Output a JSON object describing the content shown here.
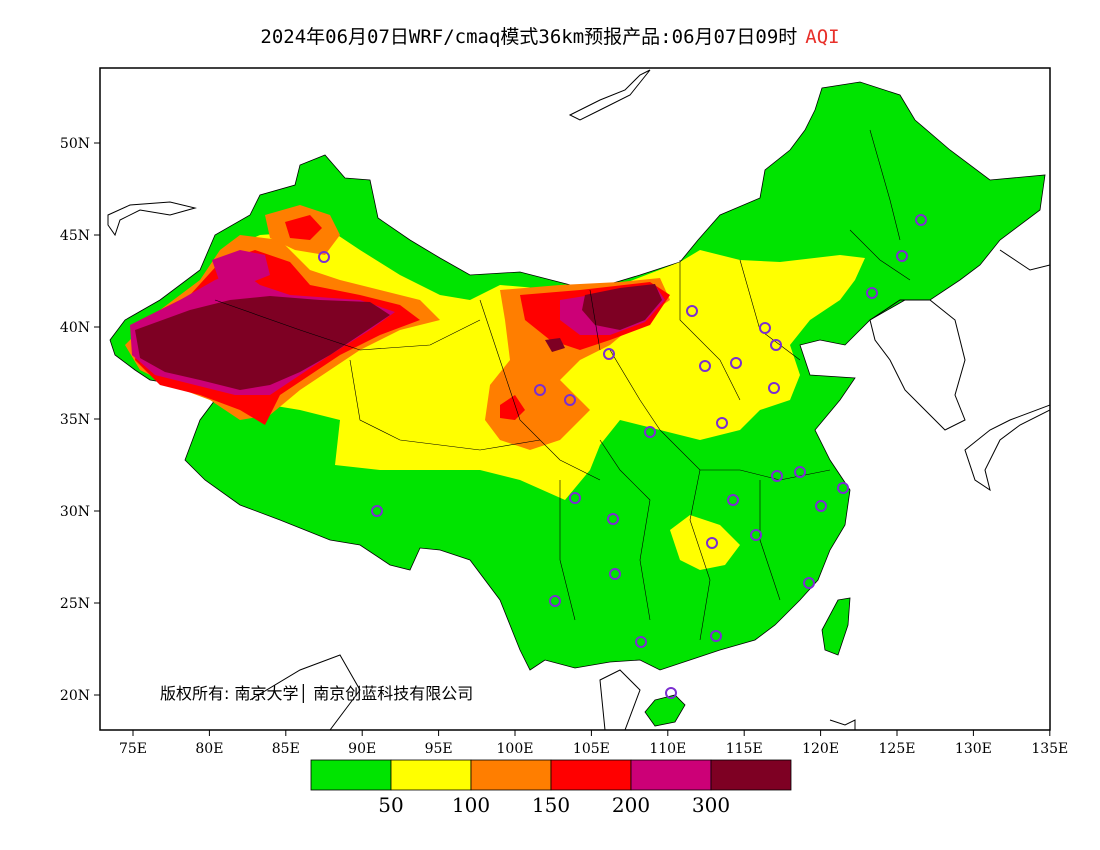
{
  "title": {
    "main": "2024年06月07日WRF/cmaq模式36km预报产品:06月07日09时",
    "variable": "AQI"
  },
  "copyright": "版权所有: 南京大学│ 南京创蓝科技有限公司",
  "axes": {
    "lon_ticks": [
      "75E",
      "80E",
      "85E",
      "90E",
      "95E",
      "100E",
      "105E",
      "110E",
      "115E",
      "120E",
      "125E",
      "130E",
      "135E"
    ],
    "lat_ticks": [
      "20N",
      "25N",
      "30N",
      "35N",
      "40N",
      "45N",
      "50N"
    ]
  },
  "colorbar": {
    "colors": [
      "#00e400",
      "#ffff00",
      "#ff7e00",
      "#ff0000",
      "#cc0077",
      "#7e0023"
    ],
    "labels": [
      "50",
      "100",
      "150",
      "200",
      "300"
    ]
  },
  "colors": {
    "good": "#00e400",
    "moderate": "#ffff00",
    "usg": "#ff7e00",
    "unhealthy": "#ff0000",
    "very_unhealthy": "#cc0077",
    "hazardous": "#7e0023",
    "station_marker": "#7b2fd0"
  }
}
